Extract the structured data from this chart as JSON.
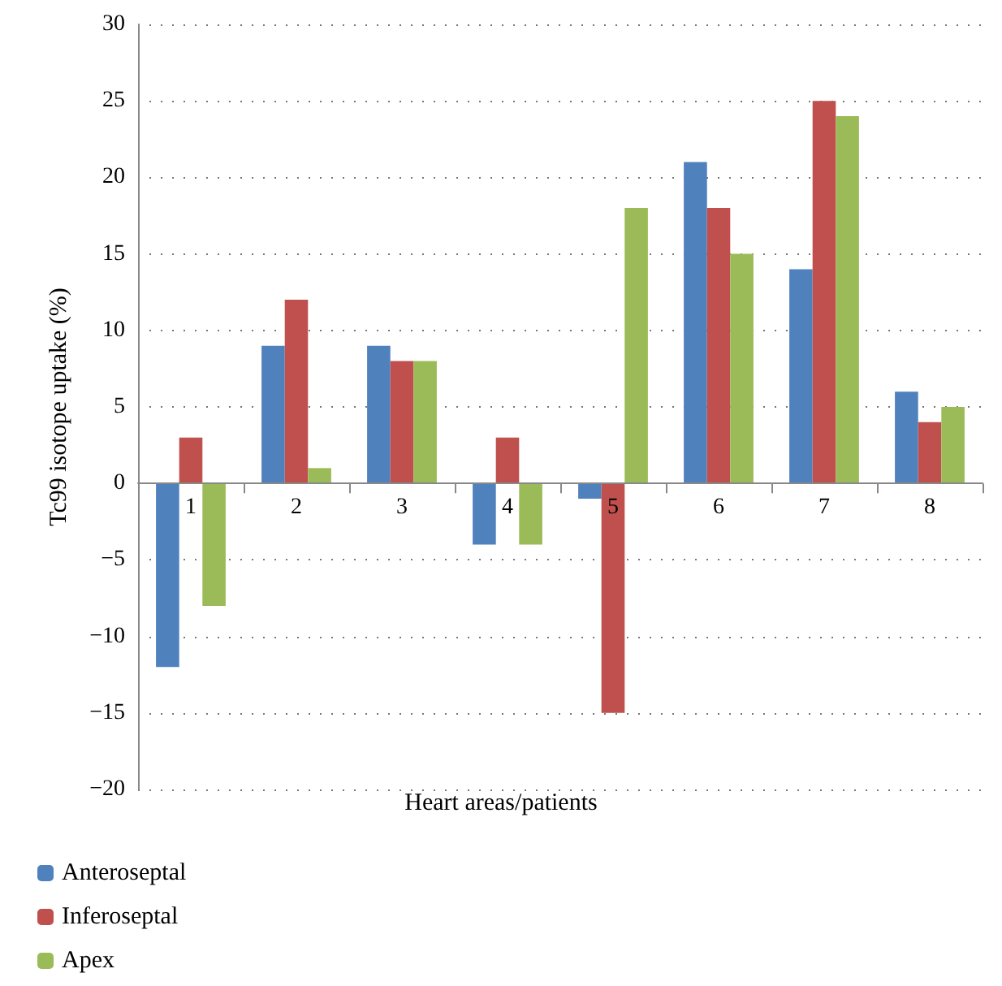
{
  "chart_data": {
    "type": "bar",
    "xlabel": "Heart areas/patients",
    "ylabel": "Tc99 isotope uptake (%)",
    "categories": [
      "1",
      "2",
      "3",
      "4",
      "5",
      "6",
      "7",
      "8"
    ],
    "series": [
      {
        "name": "Anteroseptal",
        "color": "#4f81bd",
        "values": [
          -12,
          9,
          9,
          -4,
          -1,
          21,
          14,
          6
        ]
      },
      {
        "name": "Inferoseptal",
        "color": "#c0504d",
        "values": [
          3,
          12,
          8,
          3,
          -15,
          18,
          25,
          4
        ]
      },
      {
        "name": "Apex",
        "color": "#9bbb59",
        "values": [
          -8,
          1,
          8,
          -4,
          18,
          15,
          24,
          5
        ]
      }
    ],
    "ylim": [
      -20,
      30
    ],
    "yticks": [
      -20,
      -15,
      -10,
      -5,
      0,
      5,
      10,
      15,
      20,
      25,
      30
    ],
    "grid": "y",
    "legend": "bottom left"
  }
}
